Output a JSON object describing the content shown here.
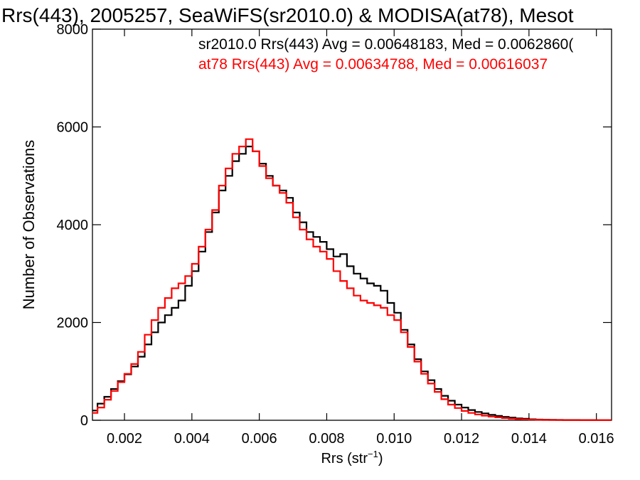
{
  "chart_data": {
    "type": "line",
    "title": "Rrs(443), 2005257, SeaWiFS(sr2010.0) & MODISA(at78), Mesot",
    "xlabel": "Rrs (str",
    "xlabel_sup": "−1",
    "xlabel_close": ")",
    "ylabel": "Number of Observations",
    "xlim": [
      0.00105,
      0.01645
    ],
    "ylim": [
      0,
      8000
    ],
    "x_ticks": [
      0.002,
      0.004,
      0.006,
      0.008,
      0.01,
      0.012,
      0.014,
      0.016
    ],
    "x_tick_labels": [
      "0.002",
      "0.004",
      "0.006",
      "0.008",
      "0.010",
      "0.012",
      "0.014",
      "0.016"
    ],
    "y_ticks": [
      0,
      2000,
      4000,
      6000,
      8000
    ],
    "y_tick_labels": [
      "0",
      "2000",
      "4000",
      "6000",
      "8000"
    ],
    "grid": false,
    "series": [
      {
        "name": "sr2010.0",
        "color": "#000000",
        "annotation": "sr2010.0 Rrs(443) Avg = 0.00648183, Med = 0.0062860(",
        "x": [
          0.00105,
          0.0012,
          0.0014,
          0.0016,
          0.0018,
          0.002,
          0.0022,
          0.0024,
          0.0026,
          0.0028,
          0.003,
          0.0032,
          0.0034,
          0.0036,
          0.0038,
          0.004,
          0.0042,
          0.0044,
          0.0046,
          0.0048,
          0.005,
          0.0052,
          0.0054,
          0.0056,
          0.0058,
          0.006,
          0.0062,
          0.0064,
          0.0066,
          0.0068,
          0.007,
          0.0072,
          0.0074,
          0.0076,
          0.0078,
          0.008,
          0.0082,
          0.0084,
          0.0086,
          0.0088,
          0.009,
          0.0092,
          0.0094,
          0.0096,
          0.0098,
          0.01,
          0.0102,
          0.0104,
          0.0106,
          0.0108,
          0.011,
          0.0112,
          0.0114,
          0.0116,
          0.0118,
          0.012,
          0.0122,
          0.0124,
          0.0126,
          0.0128,
          0.013,
          0.0132,
          0.0134,
          0.0136,
          0.0138,
          0.014,
          0.0142,
          0.0144,
          0.0146,
          0.0148,
          0.015,
          0.0155,
          0.016,
          0.01645
        ],
        "y": [
          200,
          340,
          480,
          640,
          800,
          940,
          1100,
          1300,
          1550,
          1800,
          2000,
          2150,
          2300,
          2450,
          2750,
          3050,
          3450,
          3850,
          4250,
          4700,
          5000,
          5300,
          5450,
          5600,
          5500,
          5250,
          5000,
          4800,
          4700,
          4550,
          4250,
          4050,
          3850,
          3750,
          3650,
          3500,
          3350,
          3400,
          3150,
          3000,
          2900,
          2800,
          2750,
          2650,
          2400,
          2200,
          1850,
          1550,
          1250,
          1000,
          820,
          640,
          500,
          400,
          320,
          260,
          210,
          170,
          140,
          110,
          90,
          70,
          55,
          40,
          30,
          20,
          15,
          12,
          10,
          8,
          6,
          4,
          2,
          1
        ]
      },
      {
        "name": "at78",
        "color": "#ff0000",
        "annotation": "at78 Rrs(443) Avg = 0.00634788, Med = 0.00616037",
        "x": [
          0.00105,
          0.0012,
          0.0014,
          0.0016,
          0.0018,
          0.002,
          0.0022,
          0.0024,
          0.0026,
          0.0028,
          0.003,
          0.0032,
          0.0034,
          0.0036,
          0.0038,
          0.004,
          0.0042,
          0.0044,
          0.0046,
          0.0048,
          0.005,
          0.0052,
          0.0054,
          0.0056,
          0.0058,
          0.006,
          0.0062,
          0.0064,
          0.0066,
          0.0068,
          0.007,
          0.0072,
          0.0074,
          0.0076,
          0.0078,
          0.008,
          0.0082,
          0.0084,
          0.0086,
          0.0088,
          0.009,
          0.0092,
          0.0094,
          0.0096,
          0.0098,
          0.01,
          0.0102,
          0.0104,
          0.0106,
          0.0108,
          0.011,
          0.0112,
          0.0114,
          0.0116,
          0.0118,
          0.012,
          0.0122,
          0.0124,
          0.0126,
          0.0128,
          0.013,
          0.0132,
          0.0134,
          0.0136,
          0.0138,
          0.014,
          0.0142,
          0.0144,
          0.0146,
          0.0148,
          0.015,
          0.0155,
          0.016,
          0.01645
        ],
        "y": [
          150,
          260,
          420,
          600,
          780,
          950,
          1150,
          1400,
          1750,
          2050,
          2300,
          2500,
          2700,
          2800,
          2950,
          3200,
          3550,
          3900,
          4300,
          4800,
          5150,
          5450,
          5600,
          5750,
          5500,
          5200,
          4950,
          4800,
          4650,
          4450,
          4150,
          3900,
          3700,
          3550,
          3450,
          3300,
          3050,
          2850,
          2700,
          2550,
          2450,
          2400,
          2350,
          2300,
          2150,
          2050,
          1800,
          1500,
          1200,
          950,
          750,
          580,
          430,
          320,
          250,
          190,
          150,
          120,
          95,
          75,
          60,
          45,
          35,
          25,
          18,
          12,
          9,
          7,
          5,
          4,
          3,
          2,
          1,
          1
        ]
      }
    ]
  }
}
